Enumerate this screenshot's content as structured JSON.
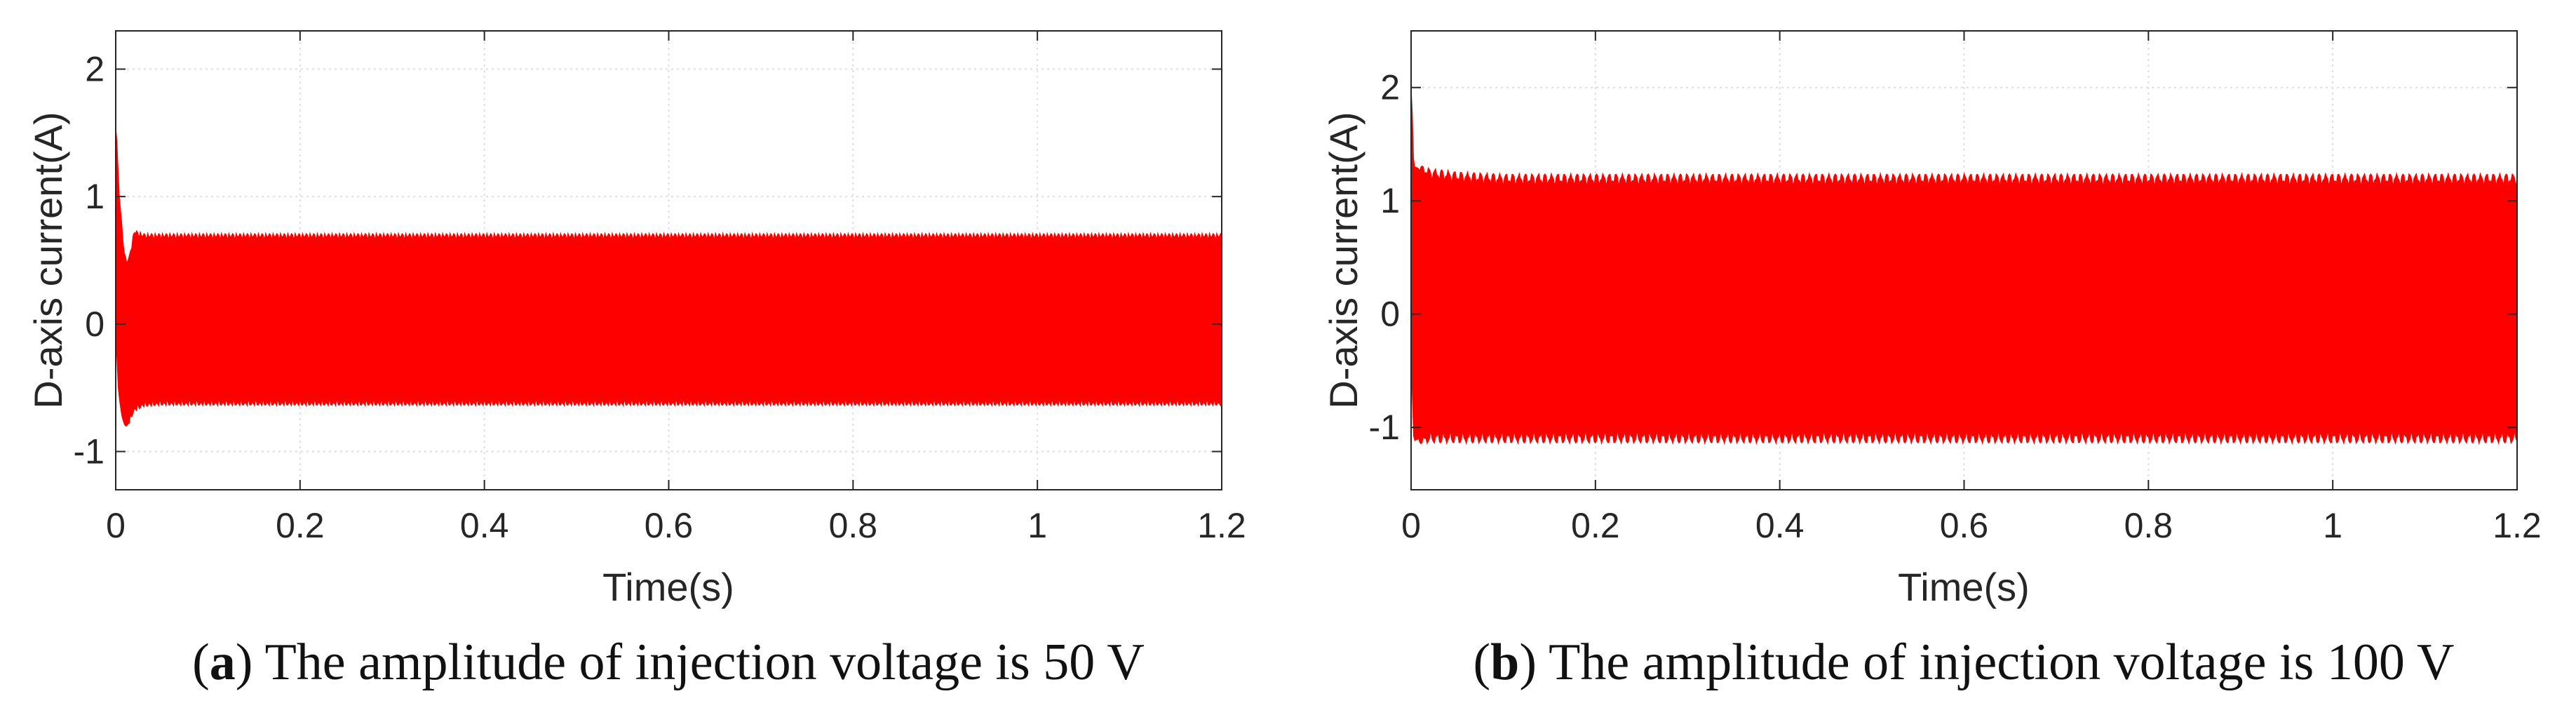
{
  "colors": {
    "signal": "#ff0000",
    "axis": "#262626",
    "grid": "#dedede",
    "frame": "#262626"
  },
  "chart_data": [
    {
      "id": "a",
      "type": "line",
      "xlabel": "Time(s)",
      "ylabel": "D-axis current(A)",
      "xlim": [
        0,
        1.2
      ],
      "ylim": [
        -1.3,
        2.3
      ],
      "xticks": [
        0,
        0.2,
        0.4,
        0.6,
        0.8,
        1,
        1.2
      ],
      "xtick_labels": [
        "0",
        "0.2",
        "0.4",
        "0.6",
        "0.8",
        "1",
        "1.2"
      ],
      "yticks": [
        -1,
        0,
        1,
        2
      ],
      "ytick_labels": [
        "-1",
        "0",
        "1",
        "2"
      ],
      "grid": true,
      "series": [
        {
          "name": "D-axis current",
          "description": "high-frequency oscillation envelope",
          "x": [
            0,
            0.001,
            0.002,
            0.004,
            0.006,
            0.008,
            0.01,
            0.012,
            0.015,
            0.02,
            0.03,
            0.05,
            0.1,
            0.2,
            0.4,
            0.6,
            0.8,
            1.0,
            1.2
          ],
          "upper": [
            1.55,
            1.5,
            1.3,
            1.0,
            0.85,
            0.65,
            0.55,
            0.5,
            0.55,
            0.75,
            0.72,
            0.72,
            0.72,
            0.72,
            0.72,
            0.72,
            0.72,
            0.72,
            0.72
          ],
          "lower": [
            -0.05,
            -0.2,
            -0.45,
            -0.6,
            -0.7,
            -0.78,
            -0.8,
            -0.82,
            -0.78,
            -0.7,
            -0.66,
            -0.65,
            -0.65,
            -0.65,
            -0.65,
            -0.65,
            -0.65,
            -0.65,
            -0.65
          ],
          "ripple": 0.06,
          "ripple_period": 0.004
        }
      ],
      "caption_letter": "a",
      "caption_text": "The amplitude of injection voltage is 50 V"
    },
    {
      "id": "b",
      "type": "line",
      "xlabel": "Time(s)",
      "ylabel": "D-axis current(A)",
      "xlim": [
        0,
        1.2
      ],
      "ylim": [
        -1.55,
        2.5
      ],
      "xticks": [
        0,
        0.2,
        0.4,
        0.6,
        0.8,
        1,
        1.2
      ],
      "xtick_labels": [
        "0",
        "0.2",
        "0.4",
        "0.6",
        "0.8",
        "1",
        "1.2"
      ],
      "yticks": [
        -1,
        0,
        1,
        2
      ],
      "ytick_labels": [
        "-1",
        "0",
        "1",
        "2"
      ],
      "grid": true,
      "series": [
        {
          "name": "D-axis current",
          "description": "high-frequency oscillation envelope",
          "x": [
            0,
            0.001,
            0.002,
            0.003,
            0.005,
            0.01,
            0.02,
            0.05,
            0.1,
            0.2,
            0.4,
            0.6,
            0.8,
            1.0,
            1.2
          ],
          "upper": [
            2.0,
            1.9,
            1.55,
            1.3,
            1.3,
            1.32,
            1.3,
            1.27,
            1.25,
            1.25,
            1.25,
            1.25,
            1.25,
            1.25,
            1.25
          ],
          "lower": [
            -0.3,
            -0.6,
            -1.0,
            -1.12,
            -1.12,
            -1.15,
            -1.15,
            -1.15,
            -1.15,
            -1.15,
            -1.15,
            -1.15,
            -1.15,
            -1.15,
            -1.15
          ],
          "ripple": 0.12,
          "ripple_period": 0.007
        }
      ],
      "caption_letter": "b",
      "caption_text": "The amplitude of injection voltage is 100 V"
    }
  ]
}
